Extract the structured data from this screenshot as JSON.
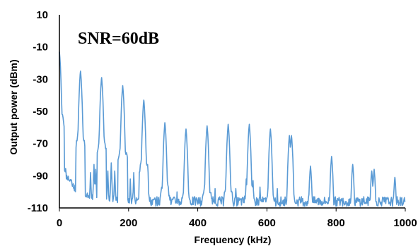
{
  "chart_data": {
    "type": "line",
    "title": "",
    "annotation": "SNR=60dB",
    "xlabel": "Frequency (kHz)",
    "ylabel": "Output power (dBm)",
    "xlim": [
      0,
      1000
    ],
    "ylim": [
      -110,
      10
    ],
    "xticks": [
      0,
      200,
      400,
      600,
      800,
      1000
    ],
    "yticks": [
      10,
      -10,
      -30,
      -50,
      -70,
      -90,
      -110
    ],
    "grid": false,
    "legend": "none",
    "series": [
      {
        "color": "#5b9bd5",
        "peaks": [
          {
            "x": 0,
            "y": -13
          },
          {
            "x": 61,
            "y": -25
          },
          {
            "x": 122,
            "y": -29
          },
          {
            "x": 183,
            "y": -34
          },
          {
            "x": 244,
            "y": -43
          },
          {
            "x": 305,
            "y": -57
          },
          {
            "x": 366,
            "y": -61
          },
          {
            "x": 427,
            "y": -59
          },
          {
            "x": 488,
            "y": -58
          },
          {
            "x": 549,
            "y": -58
          },
          {
            "x": 610,
            "y": -61
          },
          {
            "x": 665,
            "y": -65
          },
          {
            "x": 671,
            "y": -65
          },
          {
            "x": 726,
            "y": -84
          },
          {
            "x": 787,
            "y": -78
          },
          {
            "x": 848,
            "y": -83
          },
          {
            "x": 903,
            "y": -87
          },
          {
            "x": 910,
            "y": -86
          },
          {
            "x": 970,
            "y": -91
          }
        ],
        "spurs": [
          {
            "x": 20,
            "y": -92
          },
          {
            "x": 40,
            "y": -95
          },
          {
            "x": 90,
            "y": -88
          },
          {
            "x": 100,
            "y": -83
          },
          {
            "x": 105,
            "y": -86
          },
          {
            "x": 140,
            "y": -87
          },
          {
            "x": 150,
            "y": -82
          },
          {
            "x": 160,
            "y": -87
          },
          {
            "x": 205,
            "y": -92
          },
          {
            "x": 215,
            "y": -88
          },
          {
            "x": 255,
            "y": -83
          },
          {
            "x": 340,
            "y": -100
          },
          {
            "x": 450,
            "y": -98
          },
          {
            "x": 510,
            "y": -98
          },
          {
            "x": 540,
            "y": -92
          },
          {
            "x": 560,
            "y": -93
          },
          {
            "x": 580,
            "y": -97
          },
          {
            "x": 630,
            "y": -98
          },
          {
            "x": 700,
            "y": -103
          },
          {
            "x": 750,
            "y": -104
          },
          {
            "x": 820,
            "y": -104
          },
          {
            "x": 880,
            "y": -103
          },
          {
            "x": 940,
            "y": -104
          }
        ],
        "noise_floor": -106
      }
    ]
  }
}
